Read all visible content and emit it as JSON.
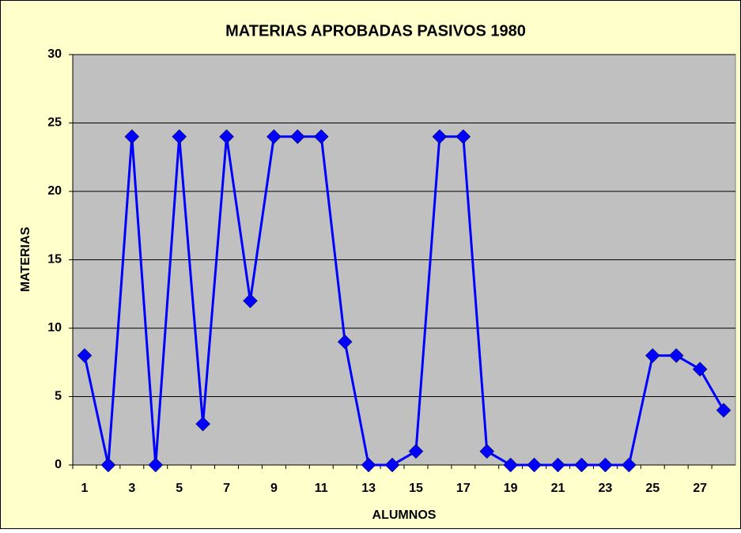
{
  "chart_data": {
    "type": "line",
    "title": "MATERIAS APROBADAS PASIVOS 1980",
    "x_label": "ALUMNOS",
    "y_label": "MATERIAS",
    "categories": [
      1,
      null,
      3,
      null,
      5,
      null,
      7,
      null,
      9,
      null,
      11,
      null,
      13,
      null,
      15,
      null,
      17,
      null,
      19,
      null,
      21,
      null,
      23,
      null,
      25,
      null,
      27,
      null
    ],
    "series": [
      {
        "color": "#0000ff",
        "values": [
          8,
          0,
          24,
          0,
          24,
          3,
          24,
          12,
          24,
          24,
          24,
          9,
          0,
          0,
          1,
          24,
          24,
          1,
          0,
          0,
          0,
          0,
          0,
          0,
          8,
          8,
          7,
          4
        ]
      }
    ],
    "ylim": [
      0,
      30
    ],
    "yticks": [
      0,
      5,
      10,
      15,
      20,
      25,
      30
    ],
    "grid": true
  }
}
